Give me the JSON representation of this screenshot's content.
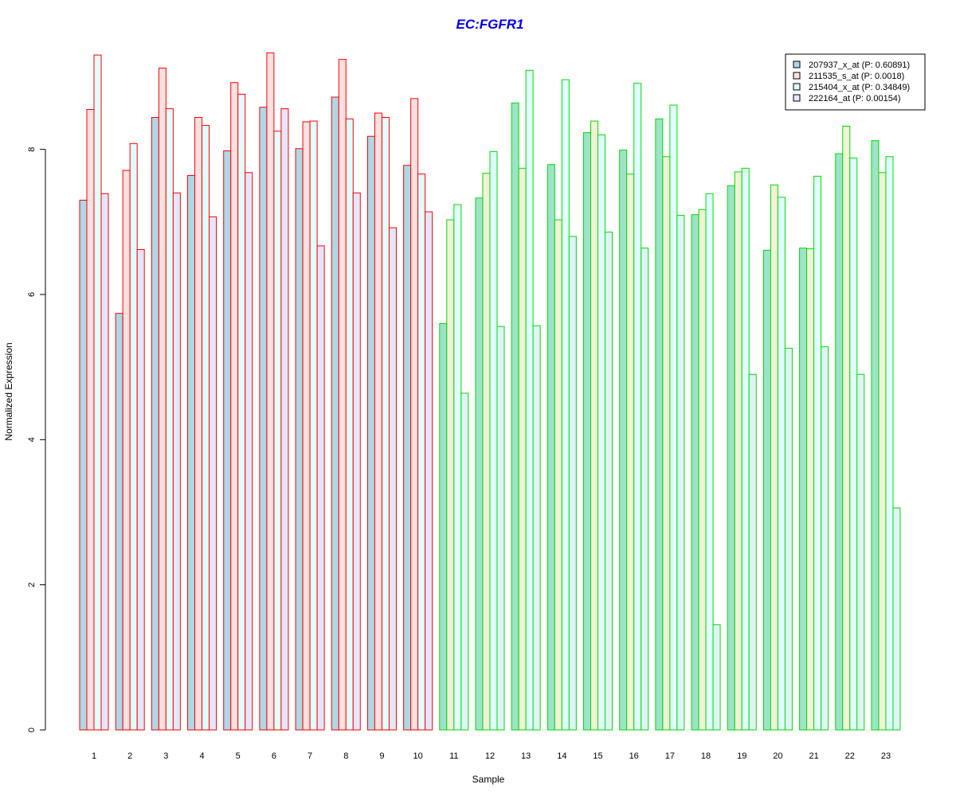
{
  "chart_data": {
    "type": "bar",
    "title": "EC:FGFR1",
    "xlabel": "Sample",
    "ylabel": "Normalized Expression",
    "ylim": [
      0,
      9.4
    ],
    "yticks": [
      0,
      2,
      4,
      6,
      8
    ],
    "grid": false,
    "legend_position": "top-right",
    "categories": [
      "1",
      "2",
      "3",
      "4",
      "5",
      "6",
      "7",
      "8",
      "9",
      "10",
      "11",
      "12",
      "13",
      "14",
      "15",
      "16",
      "17",
      "18",
      "19",
      "20",
      "21",
      "22",
      "23"
    ],
    "group_colors": {
      "border": [
        "#ff0000",
        "#ff0000",
        "#ff0000",
        "#ff0000",
        "#ff0000",
        "#ff0000",
        "#ff0000",
        "#ff0000",
        "#ff0000",
        "#ff0000",
        "#00dd00",
        "#00dd00",
        "#00dd00",
        "#00dd00",
        "#00dd00",
        "#00dd00",
        "#00dd00",
        "#00dd00",
        "#00dd00",
        "#00dd00",
        "#00dd00",
        "#00dd00",
        "#00dd00"
      ]
    },
    "series": [
      {
        "name": "207937_x_at (P: 0.60891)",
        "fill": "#add8e6",
        "fill_alt": "#9de3c9",
        "values": [
          7.3,
          5.74,
          8.44,
          7.64,
          7.98,
          8.58,
          8.01,
          8.72,
          8.18,
          7.78,
          5.6,
          7.33,
          8.64,
          7.79,
          8.23,
          7.99,
          8.42,
          7.1,
          7.5,
          6.61,
          6.64,
          7.94,
          8.12
        ]
      },
      {
        "name": "211535_s_at (P: 0.0018)",
        "fill": "#ffe0e0",
        "fill_alt": "#f2f2d8",
        "values": [
          8.55,
          7.71,
          9.12,
          8.44,
          8.92,
          9.33,
          8.38,
          9.24,
          8.5,
          8.7,
          7.03,
          7.67,
          7.74,
          7.03,
          8.39,
          7.66,
          7.9,
          7.17,
          7.69,
          7.51,
          6.63,
          8.32,
          7.68
        ]
      },
      {
        "name": "215404_x_at (P: 0.34849)",
        "fill": "#e0ffff",
        "fill_alt": "#e0ffff",
        "values": [
          9.3,
          8.08,
          8.56,
          8.33,
          8.76,
          8.25,
          8.39,
          8.42,
          8.44,
          7.66,
          7.24,
          7.97,
          9.09,
          8.96,
          8.2,
          8.91,
          8.61,
          7.39,
          7.74,
          7.34,
          7.63,
          7.88,
          7.9
        ]
      },
      {
        "name": "222164_at (P: 0.00154)",
        "fill": "#e6e6fa",
        "fill_alt": "#e0f4f8",
        "values": [
          7.39,
          6.62,
          7.4,
          7.07,
          7.68,
          8.56,
          6.67,
          7.4,
          6.92,
          7.14,
          4.64,
          5.56,
          5.57,
          6.8,
          6.86,
          6.64,
          7.09,
          1.45,
          4.9,
          5.26,
          5.28,
          4.9,
          3.06
        ]
      }
    ]
  }
}
